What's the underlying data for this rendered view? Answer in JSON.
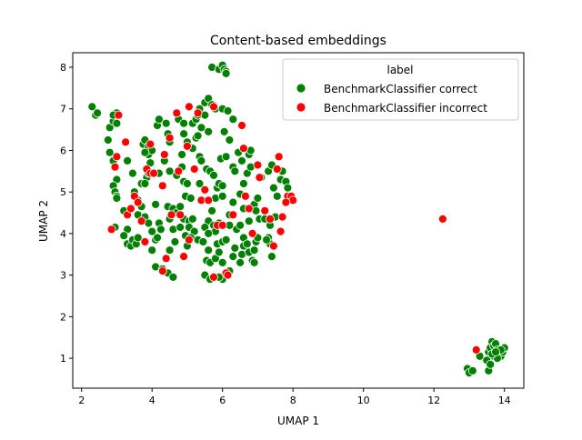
{
  "chart_data": {
    "type": "scatter",
    "title": "Content-based embeddings",
    "xlabel": "UMAP 1",
    "ylabel": "UMAP 2",
    "xlim": [
      1.75,
      14.55
    ],
    "ylim": [
      0.28,
      8.35
    ],
    "xticks": [
      2,
      4,
      6,
      8,
      10,
      12,
      14
    ],
    "yticks": [
      1,
      2,
      3,
      4,
      5,
      6,
      7,
      8
    ],
    "grid": false,
    "legend": {
      "title": "label",
      "placement": "top-right"
    },
    "series": [
      {
        "name": "BenchmarkClassifier correct",
        "color": "#008000",
        "points": [
          [
            2.3,
            7.05
          ],
          [
            2.4,
            6.85
          ],
          [
            2.45,
            6.9
          ],
          [
            2.75,
            6.25
          ],
          [
            2.8,
            6.55
          ],
          [
            2.9,
            6.7
          ],
          [
            3.0,
            6.9
          ],
          [
            2.9,
            6.85
          ],
          [
            3.0,
            6.65
          ],
          [
            2.8,
            5.95
          ],
          [
            2.9,
            5.75
          ],
          [
            3.0,
            5.3
          ],
          [
            2.9,
            5.15
          ],
          [
            2.95,
            5.0
          ],
          [
            3.0,
            4.9
          ],
          [
            3.0,
            4.85
          ],
          [
            2.95,
            4.15
          ],
          [
            3.3,
            5.75
          ],
          [
            3.2,
            4.55
          ],
          [
            3.3,
            4.1
          ],
          [
            3.2,
            3.95
          ],
          [
            3.3,
            3.75
          ],
          [
            3.4,
            3.7
          ],
          [
            3.45,
            3.85
          ],
          [
            3.55,
            3.75
          ],
          [
            3.6,
            3.9
          ],
          [
            3.45,
            5.45
          ],
          [
            3.5,
            5.0
          ],
          [
            3.6,
            4.8
          ],
          [
            3.7,
            4.65
          ],
          [
            3.6,
            4.45
          ],
          [
            3.8,
            4.4
          ],
          [
            3.7,
            5.2
          ],
          [
            3.85,
            5.35
          ],
          [
            3.85,
            5.55
          ],
          [
            3.75,
            6.15
          ],
          [
            3.8,
            6.25
          ],
          [
            3.9,
            6.1
          ],
          [
            3.9,
            5.9
          ],
          [
            4.0,
            6.0
          ],
          [
            3.8,
            5.95
          ],
          [
            3.95,
            5.7
          ],
          [
            3.9,
            5.45
          ],
          [
            3.8,
            5.2
          ],
          [
            3.9,
            4.25
          ],
          [
            4.0,
            4.05
          ],
          [
            4.1,
            3.85
          ],
          [
            4.15,
            3.9
          ],
          [
            4.0,
            3.6
          ],
          [
            4.1,
            3.2
          ],
          [
            4.3,
            3.15
          ],
          [
            4.45,
            3.05
          ],
          [
            4.6,
            2.95
          ],
          [
            4.1,
            4.7
          ],
          [
            4.2,
            4.25
          ],
          [
            4.25,
            4.1
          ],
          [
            4.2,
            5.45
          ],
          [
            4.15,
            6.6
          ],
          [
            4.2,
            6.75
          ],
          [
            4.4,
            6.65
          ],
          [
            4.45,
            6.4
          ],
          [
            4.5,
            6.2
          ],
          [
            4.35,
            5.75
          ],
          [
            4.45,
            4.65
          ],
          [
            4.5,
            4.35
          ],
          [
            4.6,
            4.6
          ],
          [
            4.7,
            4.5
          ],
          [
            4.6,
            4.1
          ],
          [
            4.5,
            3.6
          ],
          [
            4.65,
            3.8
          ],
          [
            4.5,
            5.5
          ],
          [
            4.75,
            6.75
          ],
          [
            4.9,
            6.65
          ],
          [
            4.9,
            6.4
          ],
          [
            4.85,
            5.9
          ],
          [
            4.85,
            5.6
          ],
          [
            4.9,
            5.25
          ],
          [
            4.95,
            4.9
          ],
          [
            4.8,
            4.65
          ],
          [
            4.9,
            4.35
          ],
          [
            4.8,
            4.15
          ],
          [
            4.95,
            3.95
          ],
          [
            5.05,
            4.3
          ],
          [
            5.05,
            4.15
          ],
          [
            5.15,
            4.35
          ],
          [
            5.2,
            4.05
          ],
          [
            5.1,
            3.9
          ],
          [
            5.3,
            3.85
          ],
          [
            5.0,
            3.7
          ],
          [
            5.1,
            4.85
          ],
          [
            5.0,
            5.2
          ],
          [
            5.05,
            6.1
          ],
          [
            5.15,
            6.05
          ],
          [
            5.25,
            6.3
          ],
          [
            5.0,
            6.2
          ],
          [
            5.3,
            6.35
          ],
          [
            5.15,
            6.65
          ],
          [
            5.25,
            6.75
          ],
          [
            5.3,
            6.85
          ],
          [
            5.35,
            7.0
          ],
          [
            5.5,
            7.15
          ],
          [
            5.6,
            7.25
          ],
          [
            5.7,
            7.1
          ],
          [
            5.8,
            7.0
          ],
          [
            5.5,
            6.85
          ],
          [
            5.4,
            6.55
          ],
          [
            5.6,
            6.45
          ],
          [
            5.35,
            5.85
          ],
          [
            5.4,
            5.75
          ],
          [
            5.55,
            5.55
          ],
          [
            5.65,
            5.5
          ],
          [
            5.75,
            5.4
          ],
          [
            5.85,
            5.1
          ],
          [
            5.9,
            5.2
          ],
          [
            6.0,
            5.15
          ],
          [
            5.95,
            5.8
          ],
          [
            5.8,
            4.85
          ],
          [
            5.7,
            4.55
          ],
          [
            5.6,
            4.3
          ],
          [
            5.5,
            4.15
          ],
          [
            5.75,
            4.2
          ],
          [
            5.9,
            4.25
          ],
          [
            5.8,
            4.05
          ],
          [
            5.6,
            4.0
          ],
          [
            5.45,
            3.8
          ],
          [
            5.6,
            3.6
          ],
          [
            5.55,
            3.35
          ],
          [
            5.65,
            3.3
          ],
          [
            5.8,
            3.4
          ],
          [
            5.9,
            3.55
          ],
          [
            6.0,
            3.3
          ],
          [
            5.85,
            3.75
          ],
          [
            6.0,
            3.8
          ],
          [
            6.1,
            3.85
          ],
          [
            5.5,
            3.0
          ],
          [
            5.65,
            2.9
          ],
          [
            5.8,
            2.95
          ],
          [
            6.0,
            2.9
          ],
          [
            6.1,
            3.05
          ],
          [
            6.2,
            3.1
          ],
          [
            5.9,
            2.95
          ],
          [
            5.7,
            8.0
          ],
          [
            5.9,
            7.95
          ],
          [
            6.0,
            8.05
          ],
          [
            6.05,
            7.95
          ],
          [
            6.1,
            7.9
          ],
          [
            6.1,
            7.85
          ],
          [
            6.0,
            7.0
          ],
          [
            6.15,
            6.95
          ],
          [
            6.3,
            6.75
          ],
          [
            6.05,
            6.45
          ],
          [
            6.2,
            6.25
          ],
          [
            6.1,
            5.85
          ],
          [
            6.3,
            5.6
          ],
          [
            6.35,
            5.5
          ],
          [
            6.45,
            5.95
          ],
          [
            6.3,
            4.75
          ],
          [
            6.2,
            4.45
          ],
          [
            6.2,
            4.2
          ],
          [
            6.4,
            4.1
          ],
          [
            6.5,
            4.2
          ],
          [
            6.35,
            3.65
          ],
          [
            6.3,
            3.45
          ],
          [
            6.5,
            3.3
          ],
          [
            6.55,
            3.5
          ],
          [
            6.6,
            3.7
          ],
          [
            6.6,
            3.9
          ],
          [
            6.7,
            3.75
          ],
          [
            6.75,
            3.55
          ],
          [
            6.85,
            3.35
          ],
          [
            6.9,
            3.6
          ],
          [
            6.95,
            3.8
          ],
          [
            7.0,
            3.9
          ],
          [
            6.9,
            3.3
          ],
          [
            6.5,
            4.95
          ],
          [
            6.6,
            5.2
          ],
          [
            6.7,
            5.45
          ],
          [
            6.8,
            5.6
          ],
          [
            6.75,
            5.9
          ],
          [
            6.8,
            6.0
          ],
          [
            6.6,
            6.05
          ],
          [
            6.55,
            5.75
          ],
          [
            6.9,
            4.7
          ],
          [
            6.75,
            4.3
          ],
          [
            6.95,
            4.55
          ],
          [
            7.0,
            4.85
          ],
          [
            7.05,
            4.35
          ],
          [
            7.2,
            4.35
          ],
          [
            7.35,
            4.2
          ],
          [
            7.1,
            5.35
          ],
          [
            7.3,
            5.5
          ],
          [
            7.4,
            5.65
          ],
          [
            7.45,
            5.1
          ],
          [
            7.55,
            4.9
          ],
          [
            7.65,
            5.3
          ],
          [
            7.7,
            5.5
          ],
          [
            7.8,
            5.25
          ],
          [
            7.85,
            5.1
          ],
          [
            7.5,
            4.4
          ],
          [
            7.3,
            3.9
          ],
          [
            7.35,
            3.75
          ],
          [
            7.4,
            3.45
          ],
          [
            7.25,
            3.85
          ],
          [
            6.0,
            4.9
          ],
          [
            6.6,
            4.6
          ],
          [
            5.35,
            5.2
          ],
          [
            4.7,
            5.4
          ],
          [
            12.95,
            0.75
          ],
          [
            13.0,
            0.65
          ],
          [
            13.1,
            0.7
          ],
          [
            13.3,
            1.05
          ],
          [
            13.5,
            0.95
          ],
          [
            13.55,
            0.7
          ],
          [
            13.6,
            0.85
          ],
          [
            13.55,
            1.15
          ],
          [
            13.6,
            1.25
          ],
          [
            13.65,
            1.4
          ],
          [
            13.7,
            1.3
          ],
          [
            13.75,
            1.35
          ],
          [
            13.8,
            1.2
          ],
          [
            13.85,
            1.1
          ],
          [
            13.9,
            1.05
          ],
          [
            13.95,
            1.15
          ],
          [
            14.0,
            1.25
          ],
          [
            13.7,
            1.05
          ],
          [
            13.8,
            1.0
          ],
          [
            13.9,
            1.2
          ],
          [
            13.65,
            1.1
          ],
          [
            13.75,
            1.15
          ]
        ]
      },
      {
        "name": "BenchmarkClassifier incorrect",
        "color": "#ff0000",
        "points": [
          [
            3.05,
            6.85
          ],
          [
            3.0,
            5.85
          ],
          [
            2.95,
            5.6
          ],
          [
            2.85,
            4.1
          ],
          [
            3.25,
            6.2
          ],
          [
            3.3,
            4.45
          ],
          [
            3.4,
            4.6
          ],
          [
            3.5,
            4.9
          ],
          [
            3.6,
            4.75
          ],
          [
            3.7,
            4.3
          ],
          [
            3.85,
            5.55
          ],
          [
            3.95,
            6.15
          ],
          [
            3.8,
            3.8
          ],
          [
            3.95,
            5.45
          ],
          [
            4.05,
            5.45
          ],
          [
            4.3,
            5.15
          ],
          [
            4.35,
            5.9
          ],
          [
            4.5,
            6.3
          ],
          [
            4.4,
            3.4
          ],
          [
            4.3,
            3.1
          ],
          [
            4.55,
            4.45
          ],
          [
            4.7,
            6.9
          ],
          [
            4.75,
            5.5
          ],
          [
            4.8,
            4.45
          ],
          [
            4.9,
            3.45
          ],
          [
            5.05,
            3.85
          ],
          [
            5.0,
            6.1
          ],
          [
            5.05,
            7.05
          ],
          [
            5.2,
            5.55
          ],
          [
            5.3,
            6.9
          ],
          [
            5.4,
            4.8
          ],
          [
            5.5,
            5.05
          ],
          [
            5.6,
            4.8
          ],
          [
            5.75,
            7.05
          ],
          [
            5.85,
            4.2
          ],
          [
            5.75,
            2.95
          ],
          [
            6.0,
            4.2
          ],
          [
            6.1,
            3.05
          ],
          [
            6.15,
            3.0
          ],
          [
            6.3,
            4.45
          ],
          [
            6.55,
            6.6
          ],
          [
            6.6,
            6.05
          ],
          [
            6.65,
            4.9
          ],
          [
            6.75,
            4.6
          ],
          [
            6.85,
            4.0
          ],
          [
            7.0,
            5.65
          ],
          [
            7.05,
            5.35
          ],
          [
            7.2,
            4.55
          ],
          [
            7.35,
            4.35
          ],
          [
            7.45,
            3.7
          ],
          [
            7.55,
            5.55
          ],
          [
            7.6,
            5.85
          ],
          [
            7.65,
            4.05
          ],
          [
            7.7,
            4.4
          ],
          [
            7.85,
            4.9
          ],
          [
            7.95,
            4.9
          ],
          [
            8.0,
            4.8
          ],
          [
            7.8,
            4.75
          ],
          [
            13.2,
            1.2
          ],
          [
            12.25,
            4.35
          ]
        ]
      }
    ]
  }
}
